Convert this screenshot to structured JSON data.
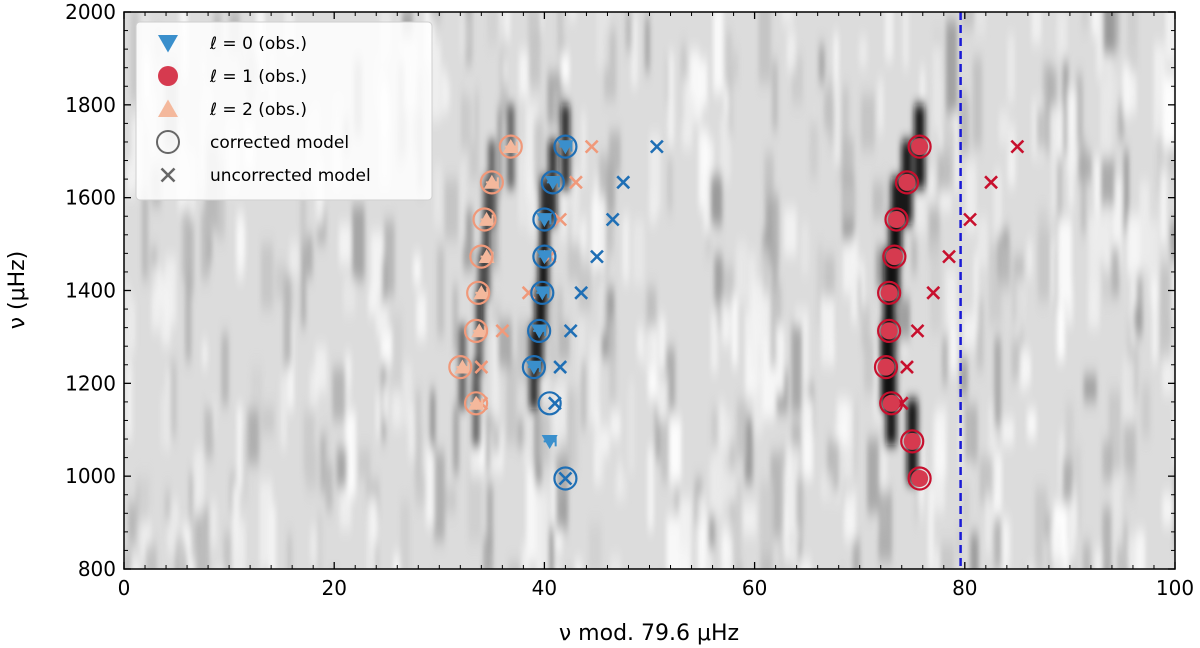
{
  "chart_data": {
    "type": "scatter",
    "title": "",
    "xlabel": "ν mod. 79.6 μHz",
    "ylabel": "ν (μHz)",
    "xlim": [
      0,
      100
    ],
    "ylim": [
      800,
      2000
    ],
    "xticks": [
      "0",
      "20",
      "40",
      "60",
      "80",
      "100"
    ],
    "yticks": [
      "800",
      "1000",
      "1200",
      "1400",
      "1600",
      "1800",
      "2000"
    ],
    "background": "grayscale échelle power spectrum",
    "vertical_line": {
      "x": 79.6,
      "style": "dashed",
      "color": "#1a1ad6"
    },
    "legend": {
      "placement": "top-left",
      "entries": [
        {
          "label": "ℓ = 0 (obs.)",
          "marker": "triangle-down",
          "color": "#3a8fcc"
        },
        {
          "label": "ℓ = 1 (obs.)",
          "marker": "circle",
          "color": "#d63a4f"
        },
        {
          "label": "ℓ = 2 (obs.)",
          "marker": "triangle-up",
          "color": "#f4b89c"
        },
        {
          "label": "corrected model",
          "marker": "open-circle",
          "color": "#666666"
        },
        {
          "label": "uncorrected model",
          "marker": "x",
          "color": "#666666"
        }
      ]
    },
    "series": [
      {
        "name": "ℓ = 0",
        "color": "#1f6fb5",
        "obs_color": "#3a8fcc",
        "obs": [
          [
            42.0,
            1710
          ],
          [
            40.8,
            1633
          ],
          [
            40.0,
            1553
          ],
          [
            40.0,
            1473
          ],
          [
            39.8,
            1395
          ],
          [
            39.5,
            1313
          ],
          [
            39.0,
            1235
          ],
          [
            40.5,
            1075
          ]
        ],
        "corrected": [
          [
            42.0,
            1710
          ],
          [
            40.8,
            1633
          ],
          [
            40.0,
            1553
          ],
          [
            40.0,
            1473
          ],
          [
            39.8,
            1395
          ],
          [
            39.5,
            1313
          ],
          [
            39.0,
            1235
          ],
          [
            40.5,
            1157
          ],
          [
            42.0,
            995
          ]
        ],
        "uncorrected": [
          [
            50.7,
            1710
          ],
          [
            47.5,
            1633
          ],
          [
            46.5,
            1553
          ],
          [
            45.0,
            1473
          ],
          [
            43.5,
            1395
          ],
          [
            42.5,
            1313
          ],
          [
            41.5,
            1235
          ],
          [
            41.0,
            1157
          ],
          [
            42.0,
            995
          ]
        ]
      },
      {
        "name": "ℓ = 1",
        "color": "#c8102e",
        "obs_color": "#d63a4f",
        "obs": [
          [
            75.7,
            1710
          ],
          [
            74.5,
            1633
          ],
          [
            73.5,
            1553
          ],
          [
            73.3,
            1473
          ],
          [
            72.8,
            1395
          ],
          [
            72.8,
            1313
          ],
          [
            72.5,
            1235
          ],
          [
            73.0,
            1157
          ],
          [
            75.0,
            1075
          ],
          [
            75.7,
            995
          ]
        ],
        "corrected": [
          [
            75.7,
            1710
          ],
          [
            74.5,
            1633
          ],
          [
            73.5,
            1553
          ],
          [
            73.3,
            1473
          ],
          [
            72.8,
            1395
          ],
          [
            72.8,
            1313
          ],
          [
            72.5,
            1235
          ],
          [
            73.0,
            1157
          ],
          [
            75.0,
            1075
          ],
          [
            75.7,
            995
          ]
        ],
        "uncorrected": [
          [
            85.0,
            1710
          ],
          [
            82.5,
            1633
          ],
          [
            80.5,
            1553
          ],
          [
            78.5,
            1473
          ],
          [
            77.0,
            1395
          ],
          [
            75.5,
            1313
          ],
          [
            74.5,
            1235
          ],
          [
            74.0,
            1157
          ],
          [
            75.0,
            1075
          ],
          [
            75.7,
            995
          ]
        ]
      },
      {
        "name": "ℓ = 2",
        "color": "#f0997a",
        "obs_color": "#f4b89c",
        "obs": [
          [
            36.8,
            1710
          ],
          [
            35.0,
            1633
          ],
          [
            34.5,
            1553
          ],
          [
            34.5,
            1473
          ],
          [
            34.0,
            1395
          ],
          [
            33.8,
            1313
          ],
          [
            32.2,
            1235
          ],
          [
            33.5,
            1157
          ]
        ],
        "corrected": [
          [
            36.8,
            1710
          ],
          [
            35.0,
            1633
          ],
          [
            34.3,
            1553
          ],
          [
            34.0,
            1473
          ],
          [
            33.7,
            1395
          ],
          [
            33.5,
            1313
          ],
          [
            32.0,
            1235
          ],
          [
            33.5,
            1157
          ]
        ],
        "uncorrected": [
          [
            44.5,
            1710
          ],
          [
            43.0,
            1633
          ],
          [
            41.5,
            1553
          ],
          [
            40.5,
            1473
          ],
          [
            38.5,
            1395
          ],
          [
            36.0,
            1313
          ],
          [
            34.0,
            1235
          ],
          [
            34.0,
            1157
          ]
        ]
      }
    ]
  }
}
